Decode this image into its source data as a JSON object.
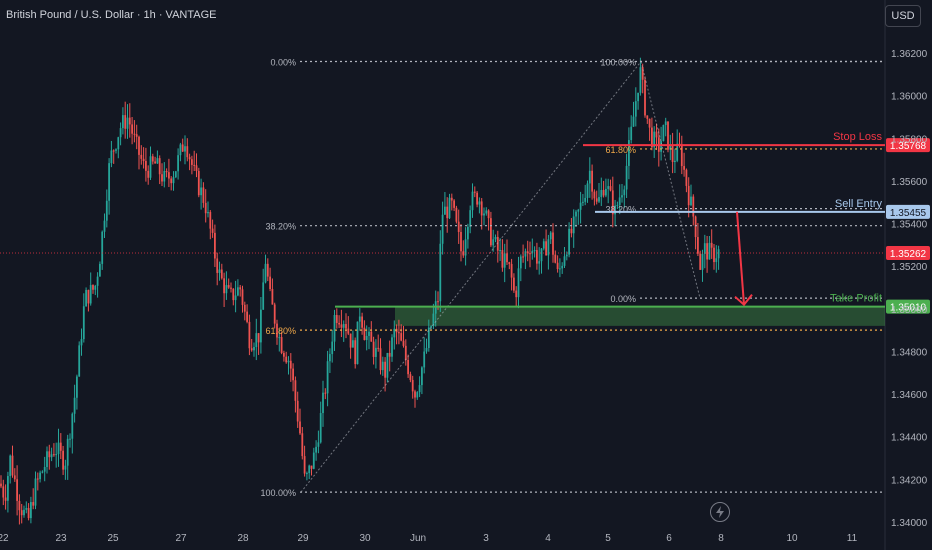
{
  "header": {
    "title": "British Pound / U.S. Dollar · 1h · VANTAGE",
    "currency": "USD"
  },
  "colors": {
    "background": "#131722",
    "bull": "#26a69a",
    "bear": "#ef5350",
    "fib": "#b2b5be",
    "fib_golden": "#f0a84a",
    "stop_loss": "#f23645",
    "sell_entry": "#a8c8ec",
    "take_profit": "#4caf50",
    "current_price": "#f23645"
  },
  "chart_data": {
    "type": "candlestick",
    "symbol": "GBPUSD",
    "timeframe": "1h",
    "ylim": [
      1.3392,
      1.3631
    ],
    "y_ticks": [
      "1.36200",
      "1.36000",
      "1.35800",
      "1.35600",
      "1.35400",
      "1.35200",
      "1.35000",
      "1.34800",
      "1.34600",
      "1.34400",
      "1.34200",
      "1.34000"
    ],
    "x_ticks": [
      "22",
      "23",
      "25",
      "27",
      "28",
      "29",
      "30",
      "Jun",
      "3",
      "4",
      "5",
      "6",
      "8",
      "10",
      "11"
    ],
    "price_path": [
      [
        0,
        1.3418
      ],
      [
        5,
        1.3412
      ],
      [
        10,
        1.343
      ],
      [
        20,
        1.3408
      ],
      [
        28,
        1.34
      ],
      [
        35,
        1.3416
      ],
      [
        45,
        1.3427
      ],
      [
        55,
        1.3435
      ],
      [
        65,
        1.3428
      ],
      [
        75,
        1.346
      ],
      [
        85,
        1.3505
      ],
      [
        95,
        1.351
      ],
      [
        100,
        1.3525
      ],
      [
        110,
        1.357
      ],
      [
        120,
        1.3585
      ],
      [
        128,
        1.359
      ],
      [
        135,
        1.3578
      ],
      [
        145,
        1.3565
      ],
      [
        155,
        1.3568
      ],
      [
        165,
        1.356
      ],
      [
        175,
        1.3565
      ],
      [
        185,
        1.358
      ],
      [
        195,
        1.3562
      ],
      [
        205,
        1.355
      ],
      [
        215,
        1.3525
      ],
      [
        220,
        1.3515
      ],
      [
        230,
        1.3505
      ],
      [
        240,
        1.351
      ],
      [
        250,
        1.3485
      ],
      [
        260,
        1.3488
      ],
      [
        265,
        1.3525
      ],
      [
        270,
        1.3505
      ],
      [
        280,
        1.3485
      ],
      [
        290,
        1.3475
      ],
      [
        300,
        1.3442
      ],
      [
        305,
        1.3418
      ],
      [
        315,
        1.3432
      ],
      [
        325,
        1.3462
      ],
      [
        335,
        1.3498
      ],
      [
        345,
        1.3495
      ],
      [
        355,
        1.3478
      ],
      [
        360,
        1.35
      ],
      [
        365,
        1.3488
      ],
      [
        375,
        1.348
      ],
      [
        385,
        1.347
      ],
      [
        395,
        1.349
      ],
      [
        400,
        1.3485
      ],
      [
        410,
        1.347
      ],
      [
        415,
        1.346
      ],
      [
        425,
        1.3478
      ],
      [
        430,
        1.349
      ],
      [
        438,
        1.3505
      ],
      [
        442,
        1.3545
      ],
      [
        452,
        1.3548
      ],
      [
        462,
        1.3525
      ],
      [
        470,
        1.355
      ],
      [
        478,
        1.3553
      ],
      [
        485,
        1.3545
      ],
      [
        490,
        1.3535
      ],
      [
        500,
        1.3525
      ],
      [
        510,
        1.3518
      ],
      [
        515,
        1.3505
      ],
      [
        520,
        1.3522
      ],
      [
        530,
        1.353
      ],
      [
        540,
        1.3522
      ],
      [
        550,
        1.3535
      ],
      [
        558,
        1.3515
      ],
      [
        565,
        1.3528
      ],
      [
        575,
        1.354
      ],
      [
        582,
        1.355
      ],
      [
        590,
        1.3565
      ],
      [
        597,
        1.3548
      ],
      [
        605,
        1.356
      ],
      [
        615,
        1.3545
      ],
      [
        625,
        1.3562
      ],
      [
        632,
        1.3585
      ],
      [
        640,
        1.3612
      ],
      [
        645,
        1.3595
      ],
      [
        650,
        1.3582
      ],
      [
        658,
        1.3575
      ],
      [
        665,
        1.3585
      ],
      [
        672,
        1.357
      ],
      [
        680,
        1.3575
      ],
      [
        688,
        1.3555
      ],
      [
        695,
        1.354
      ],
      [
        700,
        1.352
      ],
      [
        705,
        1.3528
      ],
      [
        712,
        1.3525
      ],
      [
        720,
        1.3527
      ]
    ],
    "fib_retracement_1": {
      "levels": [
        {
          "label": "0.00%",
          "price": 1.3616
        },
        {
          "label": "38.20%",
          "price": 1.3539
        },
        {
          "label": "61.80%",
          "price": 1.349
        },
        {
          "label": "100.00%",
          "price": 1.3414
        }
      ]
    },
    "fib_retracement_2": {
      "levels": [
        {
          "label": "100.00%",
          "price": 1.3616
        },
        {
          "label": "61.80%",
          "price": 1.3575
        },
        {
          "label": "38.20%",
          "price": 1.3547
        },
        {
          "label": "0.00%",
          "price": 1.3505
        }
      ]
    },
    "levels": [
      {
        "label": "Stop Loss",
        "price_label": "1.35768",
        "price": 1.35768
      },
      {
        "label": "Sell Entry",
        "price_label": "1.35455",
        "price": 1.35455
      },
      {
        "label": "Take Profit",
        "price_label": "1.35010",
        "price": 1.3501
      }
    ],
    "current_price": {
      "label": "1.35262",
      "price": 1.35262
    },
    "support_zone": [
      1.3492,
      1.3501
    ]
  }
}
